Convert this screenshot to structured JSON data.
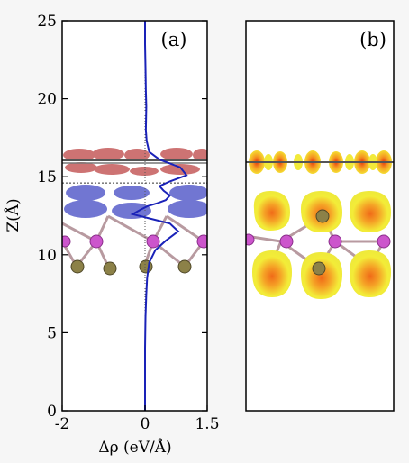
{
  "chart_data": [
    {
      "type": "line",
      "panel_label": "(a)",
      "xlabel": "Δρ (eV/Å)",
      "ylabel": "Z(Å)",
      "xlim": [
        -2,
        1.5
      ],
      "ylim": [
        0,
        25
      ],
      "x_ticks": [
        "-2",
        "0",
        "1.5"
      ],
      "y_ticks": [
        "0",
        "5",
        "10",
        "15",
        "20",
        "25"
      ],
      "reference_line_z": 14.6,
      "series": [
        {
          "color": "#1a22b8",
          "x": [
            0,
            0,
            0.01,
            0.03,
            0.05,
            0.1,
            0.25,
            0.5,
            0.8,
            0.6,
            0.15,
            -0.3,
            -0.1,
            0.05,
            0.3,
            0.5,
            0.6,
            0.45,
            0.35,
            0.6,
            1.0,
            0.85,
            0.35,
            0.1,
            0.04,
            0.02,
            0.03,
            0.02,
            0.01,
            0,
            0
          ],
          "y": [
            0,
            4.0,
            6.0,
            7.5,
            8.5,
            9.5,
            10.3,
            10.9,
            11.5,
            12.0,
            12.3,
            12.6,
            12.9,
            13.1,
            13.3,
            13.5,
            13.8,
            14.1,
            14.4,
            14.7,
            15.1,
            15.6,
            16.1,
            16.6,
            17.3,
            18.0,
            19.5,
            20.5,
            22.0,
            23.5,
            25
          ]
        }
      ]
    },
    {
      "type": "image",
      "panel_label": "(b)"
    }
  ],
  "colors": {
    "line": "#1a22b8",
    "depletion": "#6a6fd0",
    "accumulation": "#c86464",
    "mo_atom": "#cc55cc",
    "s_atom": "#8c8148",
    "isosurface": "#f2ef3a",
    "isosurface_core": "#ee6a16"
  }
}
